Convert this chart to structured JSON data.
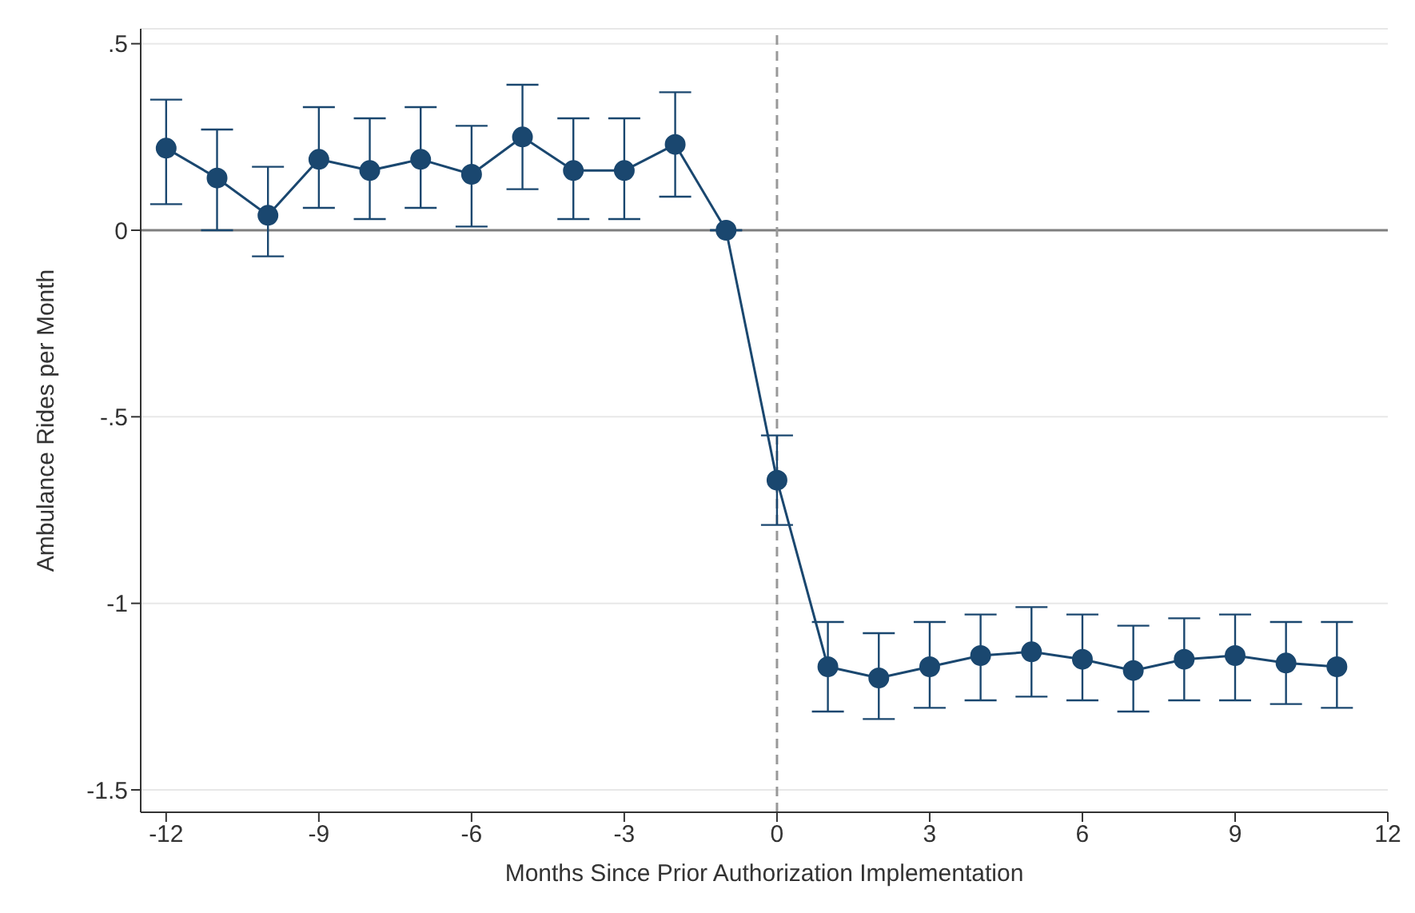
{
  "chart_data": {
    "type": "line",
    "xlabel": "Months Since Prior Authorization Implementation",
    "ylabel": "Ambulance Rides per Month",
    "x": [
      -12,
      -11,
      -10,
      -9,
      -8,
      -7,
      -6,
      -5,
      -4,
      -3,
      -2,
      -1,
      0,
      1,
      2,
      3,
      4,
      5,
      6,
      7,
      8,
      9,
      10,
      11
    ],
    "series": [
      {
        "color": "#1a476f",
        "values": [
          0.22,
          0.14,
          0.04,
          0.19,
          0.16,
          0.19,
          0.15,
          0.25,
          0.16,
          0.16,
          0.23,
          0,
          -0.67,
          -1.17,
          -1.2,
          -1.17,
          -1.14,
          -1.13,
          -1.15,
          -1.18,
          -1.15,
          -1.14,
          -1.16,
          -1.17
        ],
        "errors": [
          [
            0.07,
            0.35
          ],
          [
            0.0,
            0.27
          ],
          [
            -0.07,
            0.17
          ],
          [
            0.06,
            0.33
          ],
          [
            0.03,
            0.3
          ],
          [
            0.06,
            0.33
          ],
          [
            0.01,
            0.28
          ],
          [
            0.11,
            0.39
          ],
          [
            0.03,
            0.3
          ],
          [
            0.03,
            0.3
          ],
          [
            0.09,
            0.37
          ],
          null,
          [
            -0.79,
            -0.55
          ],
          [
            -1.29,
            -1.05
          ],
          [
            -1.31,
            -1.08
          ],
          [
            -1.28,
            -1.05
          ],
          [
            -1.26,
            -1.03
          ],
          [
            -1.25,
            -1.01
          ],
          [
            -1.26,
            -1.03
          ],
          [
            -1.29,
            -1.06
          ],
          [
            -1.26,
            -1.04
          ],
          [
            -1.26,
            -1.03
          ],
          [
            -1.27,
            -1.05
          ],
          [
            -1.28,
            -1.05
          ]
        ]
      }
    ],
    "xlim": [
      -12.5,
      12
    ],
    "xticks": [
      -12,
      -9,
      -6,
      -3,
      0,
      3,
      6,
      9,
      12
    ],
    "ylim": [
      -1.56,
      0.54
    ],
    "yticks": [
      {
        "value": -1.5,
        "label": "-1.5"
      },
      -1,
      {
        "value": -0.5,
        "label": "-.5"
      },
      0,
      {
        "value": 0.5,
        "label": ".5"
      }
    ],
    "grid": "y",
    "marker": "circle",
    "line_style": "solid",
    "legend": false,
    "ref_lines": [
      {
        "axis": "y",
        "value": 0,
        "color": "#7f7f7f",
        "line_style": "solid"
      },
      {
        "axis": "x",
        "value": 0,
        "color": "#999999",
        "line_style": "dashed"
      }
    ]
  }
}
